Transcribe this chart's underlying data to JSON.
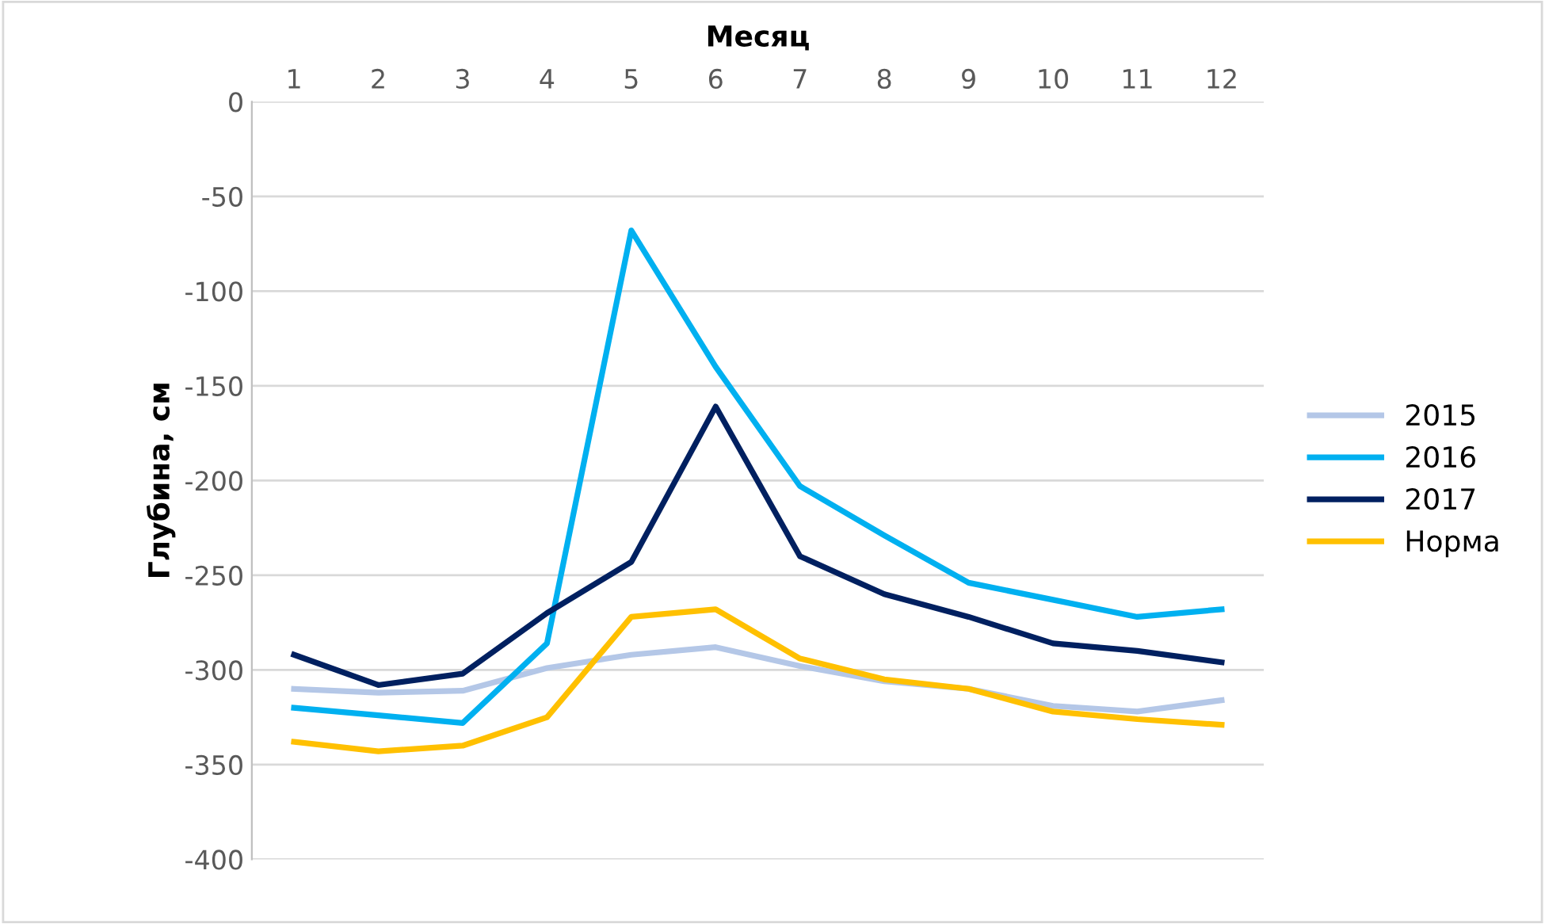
{
  "chart_data": {
    "type": "line",
    "xlabel": "Месяц",
    "ylabel": "Глубина, см",
    "categories": [
      "1",
      "2",
      "3",
      "4",
      "5",
      "6",
      "7",
      "8",
      "9",
      "10",
      "11",
      "12"
    ],
    "series": [
      {
        "name": "2015",
        "color": "#b4c7e7",
        "values": [
          -310,
          -312,
          -311,
          -299,
          -292,
          -288,
          -298,
          -306,
          -310,
          -319,
          -322,
          -316
        ]
      },
      {
        "name": "2016",
        "color": "#00b0f0",
        "values": [
          -320,
          -324,
          -328,
          -286,
          -68,
          -140,
          -203,
          -229,
          -254,
          -263,
          -272,
          -268
        ]
      },
      {
        "name": "2017",
        "color": "#002060",
        "values": [
          -292,
          -308,
          -302,
          -270,
          -243,
          -161,
          -240,
          -260,
          -272,
          -286,
          -290,
          -296
        ]
      },
      {
        "name": "Норма",
        "color": "#ffc000",
        "values": [
          -338,
          -343,
          -340,
          -325,
          -272,
          -268,
          -294,
          -305,
          -310,
          -322,
          -326,
          -329
        ]
      }
    ],
    "ylim": [
      -400,
      0
    ],
    "yticks": [
      -400,
      -350,
      -300,
      -250,
      -200,
      -150,
      -100,
      -50,
      0
    ],
    "grid": "y",
    "legend": "right"
  }
}
